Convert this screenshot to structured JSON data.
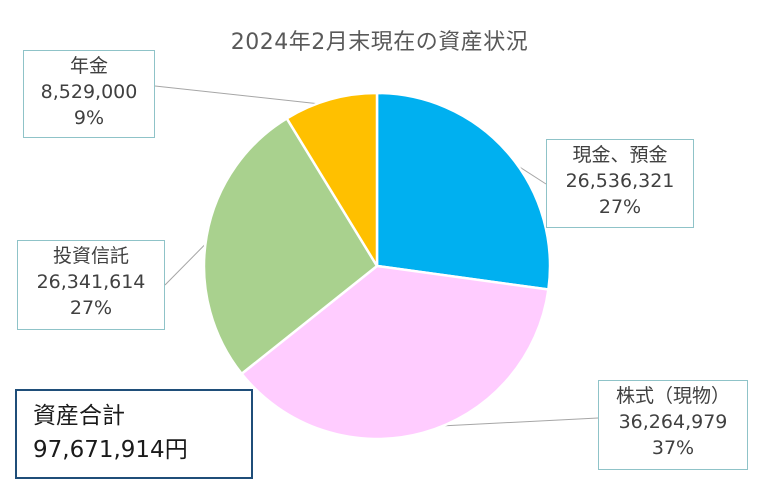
{
  "chart_data": {
    "type": "pie",
    "title": "2024年2月末現在の資産状況",
    "slices": [
      {
        "label": "現金、預金",
        "value": 26536321,
        "value_text": "26,536,321",
        "percent_text": "27%",
        "color": "#00b0f0"
      },
      {
        "label": "株式（現物）",
        "value": 36264979,
        "value_text": "36,264,979",
        "percent_text": "37%",
        "color": "#ffccff"
      },
      {
        "label": "投資信託",
        "value": 26341614,
        "value_text": "26,341,614",
        "percent_text": "27%",
        "color": "#a9d18e"
      },
      {
        "label": "年金",
        "value": 8529000,
        "value_text": "8,529,000",
        "percent_text": "9%",
        "color": "#ffc000"
      }
    ],
    "start": "12 o'clock",
    "direction": "clockwise"
  },
  "total": {
    "label": "資産合計",
    "value_text": "97,671,914円"
  }
}
